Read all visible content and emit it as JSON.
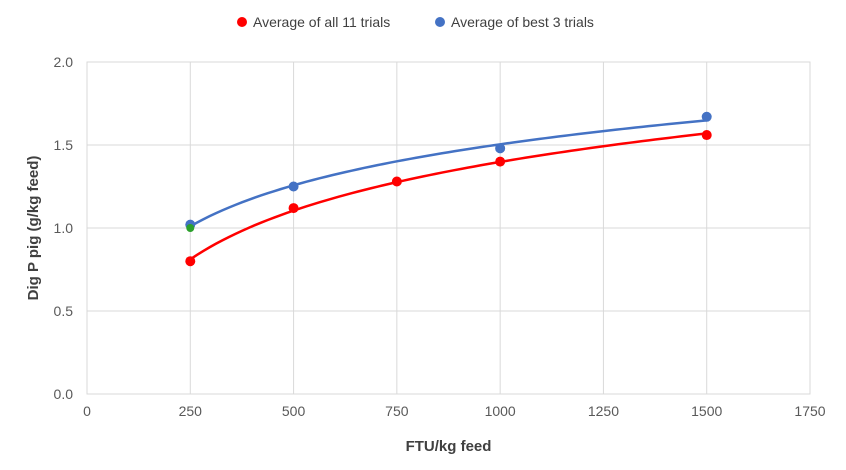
{
  "chart_data": {
    "type": "scatter",
    "title": "",
    "xlabel": "FTU/kg feed",
    "ylabel": "Dig P pig (g/kg feed)",
    "xlim": [
      0,
      1750
    ],
    "ylim": [
      0,
      2.0
    ],
    "xticks": [
      "0",
      "250",
      "500",
      "750",
      "1000",
      "1250",
      "1500",
      "1750"
    ],
    "yticks": [
      "0.0",
      "0.5",
      "1.0",
      "1.5",
      "2.0"
    ],
    "grid": true,
    "legend_position": "top",
    "trendline": "logarithmic",
    "series": [
      {
        "name": "Average of all 11 trials",
        "color": "#ff0000",
        "x": [
          250,
          500,
          750,
          1000,
          1500
        ],
        "y": [
          0.8,
          1.12,
          1.28,
          1.4,
          1.56
        ]
      },
      {
        "name": "Average of best 3 trials",
        "color": "#4472c4",
        "x": [
          250,
          500,
          1000,
          1500
        ],
        "y": [
          1.02,
          1.25,
          1.48,
          1.67
        ]
      }
    ],
    "extra_points": [
      {
        "x": 250,
        "y": 1.0,
        "color": "#2ca02c"
      }
    ]
  }
}
